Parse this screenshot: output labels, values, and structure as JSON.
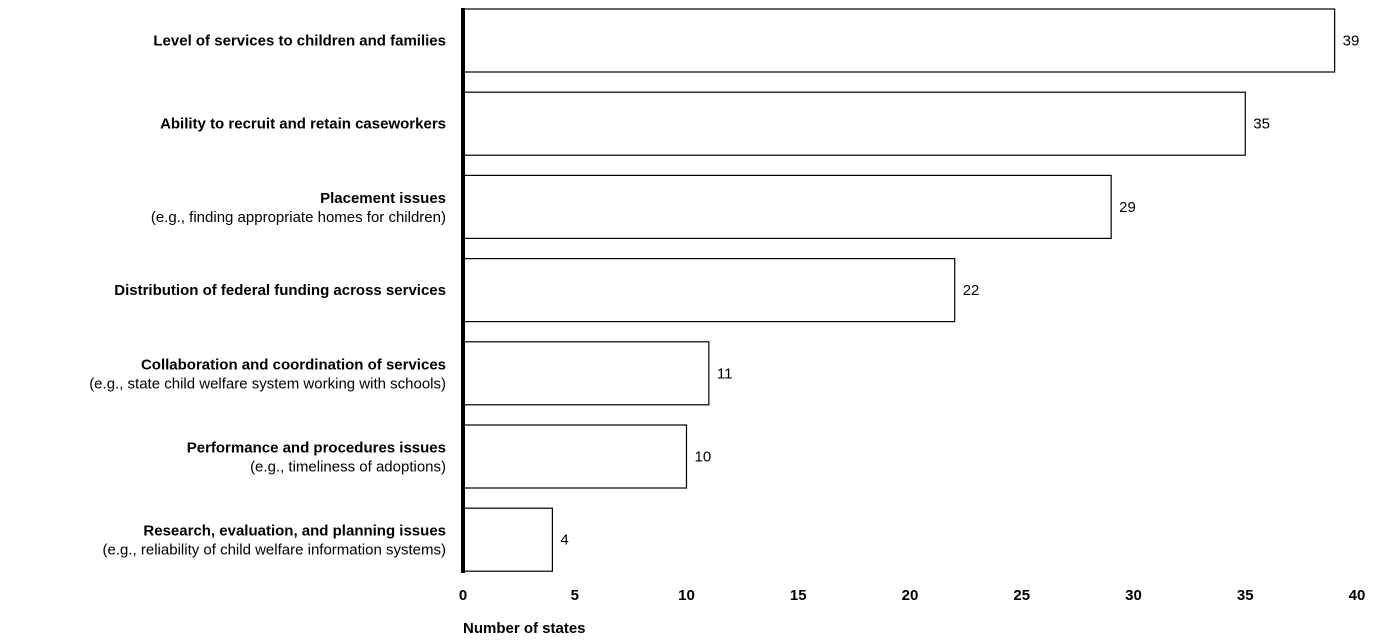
{
  "chart_data": {
    "type": "bar",
    "orientation": "horizontal",
    "title": "",
    "xlabel": "Number of states",
    "ylabel": "",
    "xlim": [
      0,
      40
    ],
    "xticks": [
      "0",
      "5",
      "10",
      "15",
      "20",
      "25",
      "30",
      "35",
      "40"
    ],
    "grid": false,
    "categories": [
      {
        "title": "Level of services to children and families",
        "subtitle": ""
      },
      {
        "title": "Ability to recruit and retain caseworkers",
        "subtitle": ""
      },
      {
        "title": "Placement issues",
        "subtitle": "(e.g., finding appropriate homes for children)"
      },
      {
        "title": "Distribution of federal funding across services",
        "subtitle": ""
      },
      {
        "title": "Collaboration and coordination of services",
        "subtitle": "(e.g., state child welfare system working with schools)"
      },
      {
        "title": "Performance and procedures issues",
        "subtitle": "(e.g., timeliness of adoptions)"
      },
      {
        "title": "Research, evaluation, and planning issues",
        "subtitle": "(e.g., reliability of child welfare information systems)"
      }
    ],
    "values": [
      39,
      35,
      29,
      22,
      11,
      10,
      4
    ],
    "value_labels": [
      "39",
      "35",
      "29",
      "22",
      "11",
      "10",
      "4"
    ],
    "colors": {
      "bar_fill": "#ffffff",
      "bar_stroke": "#000000",
      "axis": "#000000"
    }
  }
}
